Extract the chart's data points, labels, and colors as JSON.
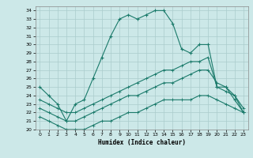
{
  "title": "",
  "xlabel": "Humidex (Indice chaleur)",
  "ylabel": "",
  "background_color": "#cce8e8",
  "grid_color": "#aacccc",
  "line_color": "#1a7a6a",
  "xlim": [
    -0.5,
    23.5
  ],
  "ylim": [
    20,
    34.5
  ],
  "xticks": [
    0,
    1,
    2,
    3,
    4,
    5,
    6,
    7,
    8,
    9,
    10,
    11,
    12,
    13,
    14,
    15,
    16,
    17,
    18,
    19,
    20,
    21,
    22,
    23
  ],
  "yticks": [
    20,
    21,
    22,
    23,
    24,
    25,
    26,
    27,
    28,
    29,
    30,
    31,
    32,
    33,
    34
  ],
  "line1_x": [
    0,
    1,
    2,
    3,
    4,
    5,
    6,
    7,
    8,
    9,
    10,
    11,
    12,
    13,
    14,
    15,
    16,
    17,
    18,
    19,
    20,
    21,
    22,
    23
  ],
  "line1_y": [
    25.0,
    24.0,
    23.0,
    21.0,
    23.0,
    23.5,
    26.0,
    28.5,
    31.0,
    33.0,
    33.5,
    33.0,
    33.5,
    34.0,
    34.0,
    32.5,
    29.5,
    29.0,
    30.0,
    30.0,
    25.0,
    25.0,
    23.5,
    22.0
  ],
  "line2_x": [
    0,
    1,
    2,
    3,
    4,
    5,
    6,
    7,
    8,
    9,
    10,
    11,
    12,
    13,
    14,
    15,
    16,
    17,
    18,
    19,
    20,
    21,
    22,
    23
  ],
  "line2_y": [
    23.5,
    23.0,
    22.5,
    22.0,
    22.0,
    22.5,
    23.0,
    23.5,
    24.0,
    24.5,
    25.0,
    25.5,
    26.0,
    26.5,
    27.0,
    27.0,
    27.5,
    28.0,
    28.0,
    28.5,
    25.0,
    24.5,
    24.0,
    22.5
  ],
  "line3_x": [
    0,
    1,
    2,
    3,
    4,
    5,
    6,
    7,
    8,
    9,
    10,
    11,
    12,
    13,
    14,
    15,
    16,
    17,
    18,
    19,
    20,
    21,
    22,
    23
  ],
  "line3_y": [
    22.5,
    22.0,
    21.5,
    21.0,
    21.0,
    21.5,
    22.0,
    22.5,
    23.0,
    23.5,
    24.0,
    24.0,
    24.5,
    25.0,
    25.5,
    25.5,
    26.0,
    26.5,
    27.0,
    27.0,
    25.5,
    25.0,
    24.0,
    22.0
  ],
  "line4_x": [
    0,
    1,
    2,
    3,
    4,
    5,
    6,
    7,
    8,
    9,
    10,
    11,
    12,
    13,
    14,
    15,
    16,
    17,
    18,
    19,
    20,
    21,
    22,
    23
  ],
  "line4_y": [
    21.5,
    21.0,
    20.5,
    20.0,
    20.0,
    20.0,
    20.5,
    21.0,
    21.0,
    21.5,
    22.0,
    22.0,
    22.5,
    23.0,
    23.5,
    23.5,
    23.5,
    23.5,
    24.0,
    24.0,
    23.5,
    23.0,
    22.5,
    22.0
  ]
}
